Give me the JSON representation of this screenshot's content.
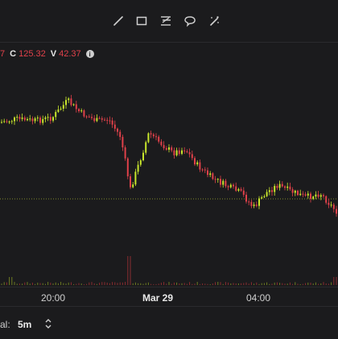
{
  "toolbar": {
    "tools": [
      {
        "icon": "trendline-icon"
      },
      {
        "icon": "rectangle-icon"
      },
      {
        "icon": "fib-retracement-icon"
      },
      {
        "icon": "ellipse-icon"
      },
      {
        "icon": "eraser-icon"
      }
    ]
  },
  "ohlc": {
    "partial_value": "7",
    "close_label": "C",
    "close_value": "125.32",
    "volume_label": "V",
    "volume_value": "42.37",
    "info_glyph": "i"
  },
  "xaxis": {
    "ticks": [
      {
        "label": "20:00",
        "bold": false
      },
      {
        "label": "Mar 29",
        "bold": true
      },
      {
        "label": "04:00",
        "bold": false
      }
    ]
  },
  "footer": {
    "interval_label": "al:",
    "interval_value": "5m"
  },
  "colors": {
    "background": "#1b1b1d",
    "up": "#c8e62c",
    "down": "#e0414a",
    "reference_line": "#7f8a2a"
  }
}
